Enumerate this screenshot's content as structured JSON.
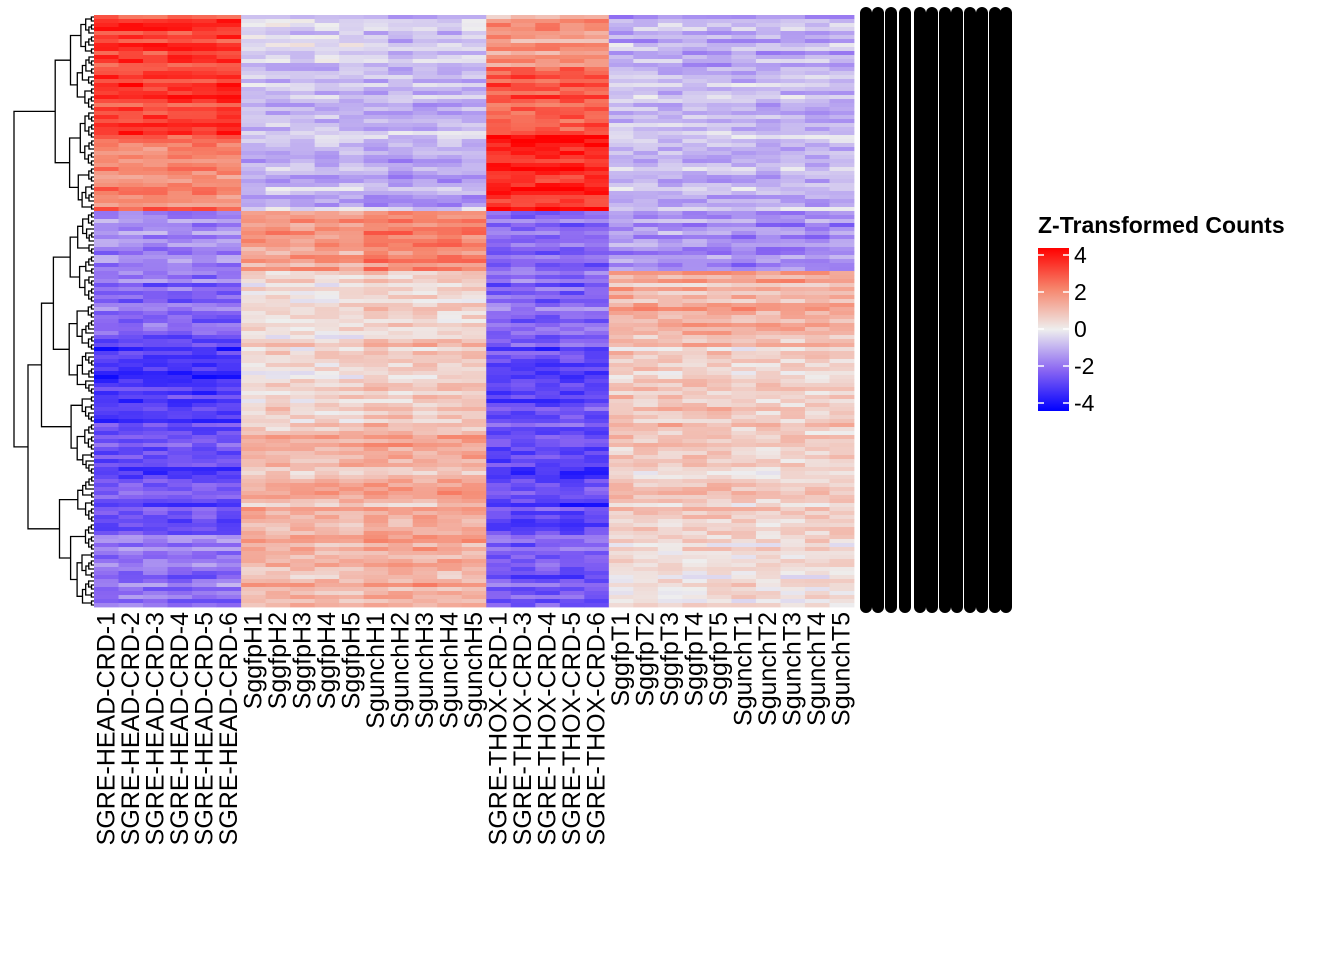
{
  "chart_data": {
    "type": "heatmap",
    "title": "",
    "xlabel": "",
    "ylabel": "",
    "columns": [
      "SGRE-HEAD-CRD-1",
      "SGRE-HEAD-CRD-2",
      "SGRE-HEAD-CRD-3",
      "SGRE-HEAD-CRD-4",
      "SGRE-HEAD-CRD-5",
      "SGRE-HEAD-CRD-6",
      "SggfpH1",
      "SggfpH2",
      "SggfpH3",
      "SggfpH4",
      "SggfpH5",
      "SgunchH1",
      "SgunchH2",
      "SgunchH3",
      "SgunchH4",
      "SgunchH5",
      "SGRE-THOX-CRD-1",
      "SGRE-THOX-CRD-3",
      "SGRE-THOX-CRD-4",
      "SGRE-THOX-CRD-5",
      "SGRE-THOX-CRD-6",
      "SggfpT1",
      "SggfpT2",
      "SggfpT3",
      "SggfpT4",
      "SggfpT5",
      "SgunchT1",
      "SgunchT2",
      "SgunchT3",
      "SgunchT4",
      "SgunchT5"
    ],
    "column_groups": [
      {
        "group": "SGRE-HEAD-CRD",
        "count": 6
      },
      {
        "group": "SggfpH",
        "count": 5
      },
      {
        "group": "SgunchH",
        "count": 5
      },
      {
        "group": "SGRE-THOX-CRD",
        "count": 5
      },
      {
        "group": "SggfpT",
        "count": 5
      },
      {
        "group": "SgunchT",
        "count": 5
      }
    ],
    "row_bands_approx": [
      {
        "gene_share": 0.09,
        "group_means": [
          3.0,
          -0.5,
          -0.7,
          1.5,
          -1.0,
          -1.0
        ]
      },
      {
        "gene_share": 0.11,
        "group_means": [
          3.0,
          -0.8,
          -0.9,
          2.5,
          -0.8,
          -0.9
        ]
      },
      {
        "gene_share": 0.13,
        "group_means": [
          2.0,
          -0.8,
          -1.0,
          3.5,
          -0.8,
          -0.8
        ]
      },
      {
        "gene_share": 0.1,
        "group_means": [
          -1.5,
          1.5,
          2.0,
          -2.0,
          -1.3,
          -1.5
        ]
      },
      {
        "gene_share": 0.12,
        "group_means": [
          -2.0,
          0.3,
          0.5,
          -2.0,
          1.2,
          1.2
        ]
      },
      {
        "gene_share": 0.15,
        "group_means": [
          -2.8,
          0.5,
          0.8,
          -2.5,
          0.8,
          0.6
        ]
      },
      {
        "gene_share": 0.18,
        "group_means": [
          -2.5,
          1.0,
          1.2,
          -2.7,
          0.6,
          0.5
        ]
      },
      {
        "gene_share": 0.12,
        "group_means": [
          -1.8,
          1.0,
          1.2,
          -2.2,
          0.3,
          0.3
        ]
      }
    ],
    "row_dendrogram": true,
    "row_labels_overplotted": true,
    "color_scale": {
      "title": "Z-Transformed Counts",
      "range": [
        -4,
        4
      ],
      "ticks": [
        "4",
        "2",
        "0",
        "-2",
        "-4"
      ],
      "low": "#0000ff",
      "mid": "#eeeeee",
      "high": "#ff0000"
    },
    "legend_position": "right"
  }
}
